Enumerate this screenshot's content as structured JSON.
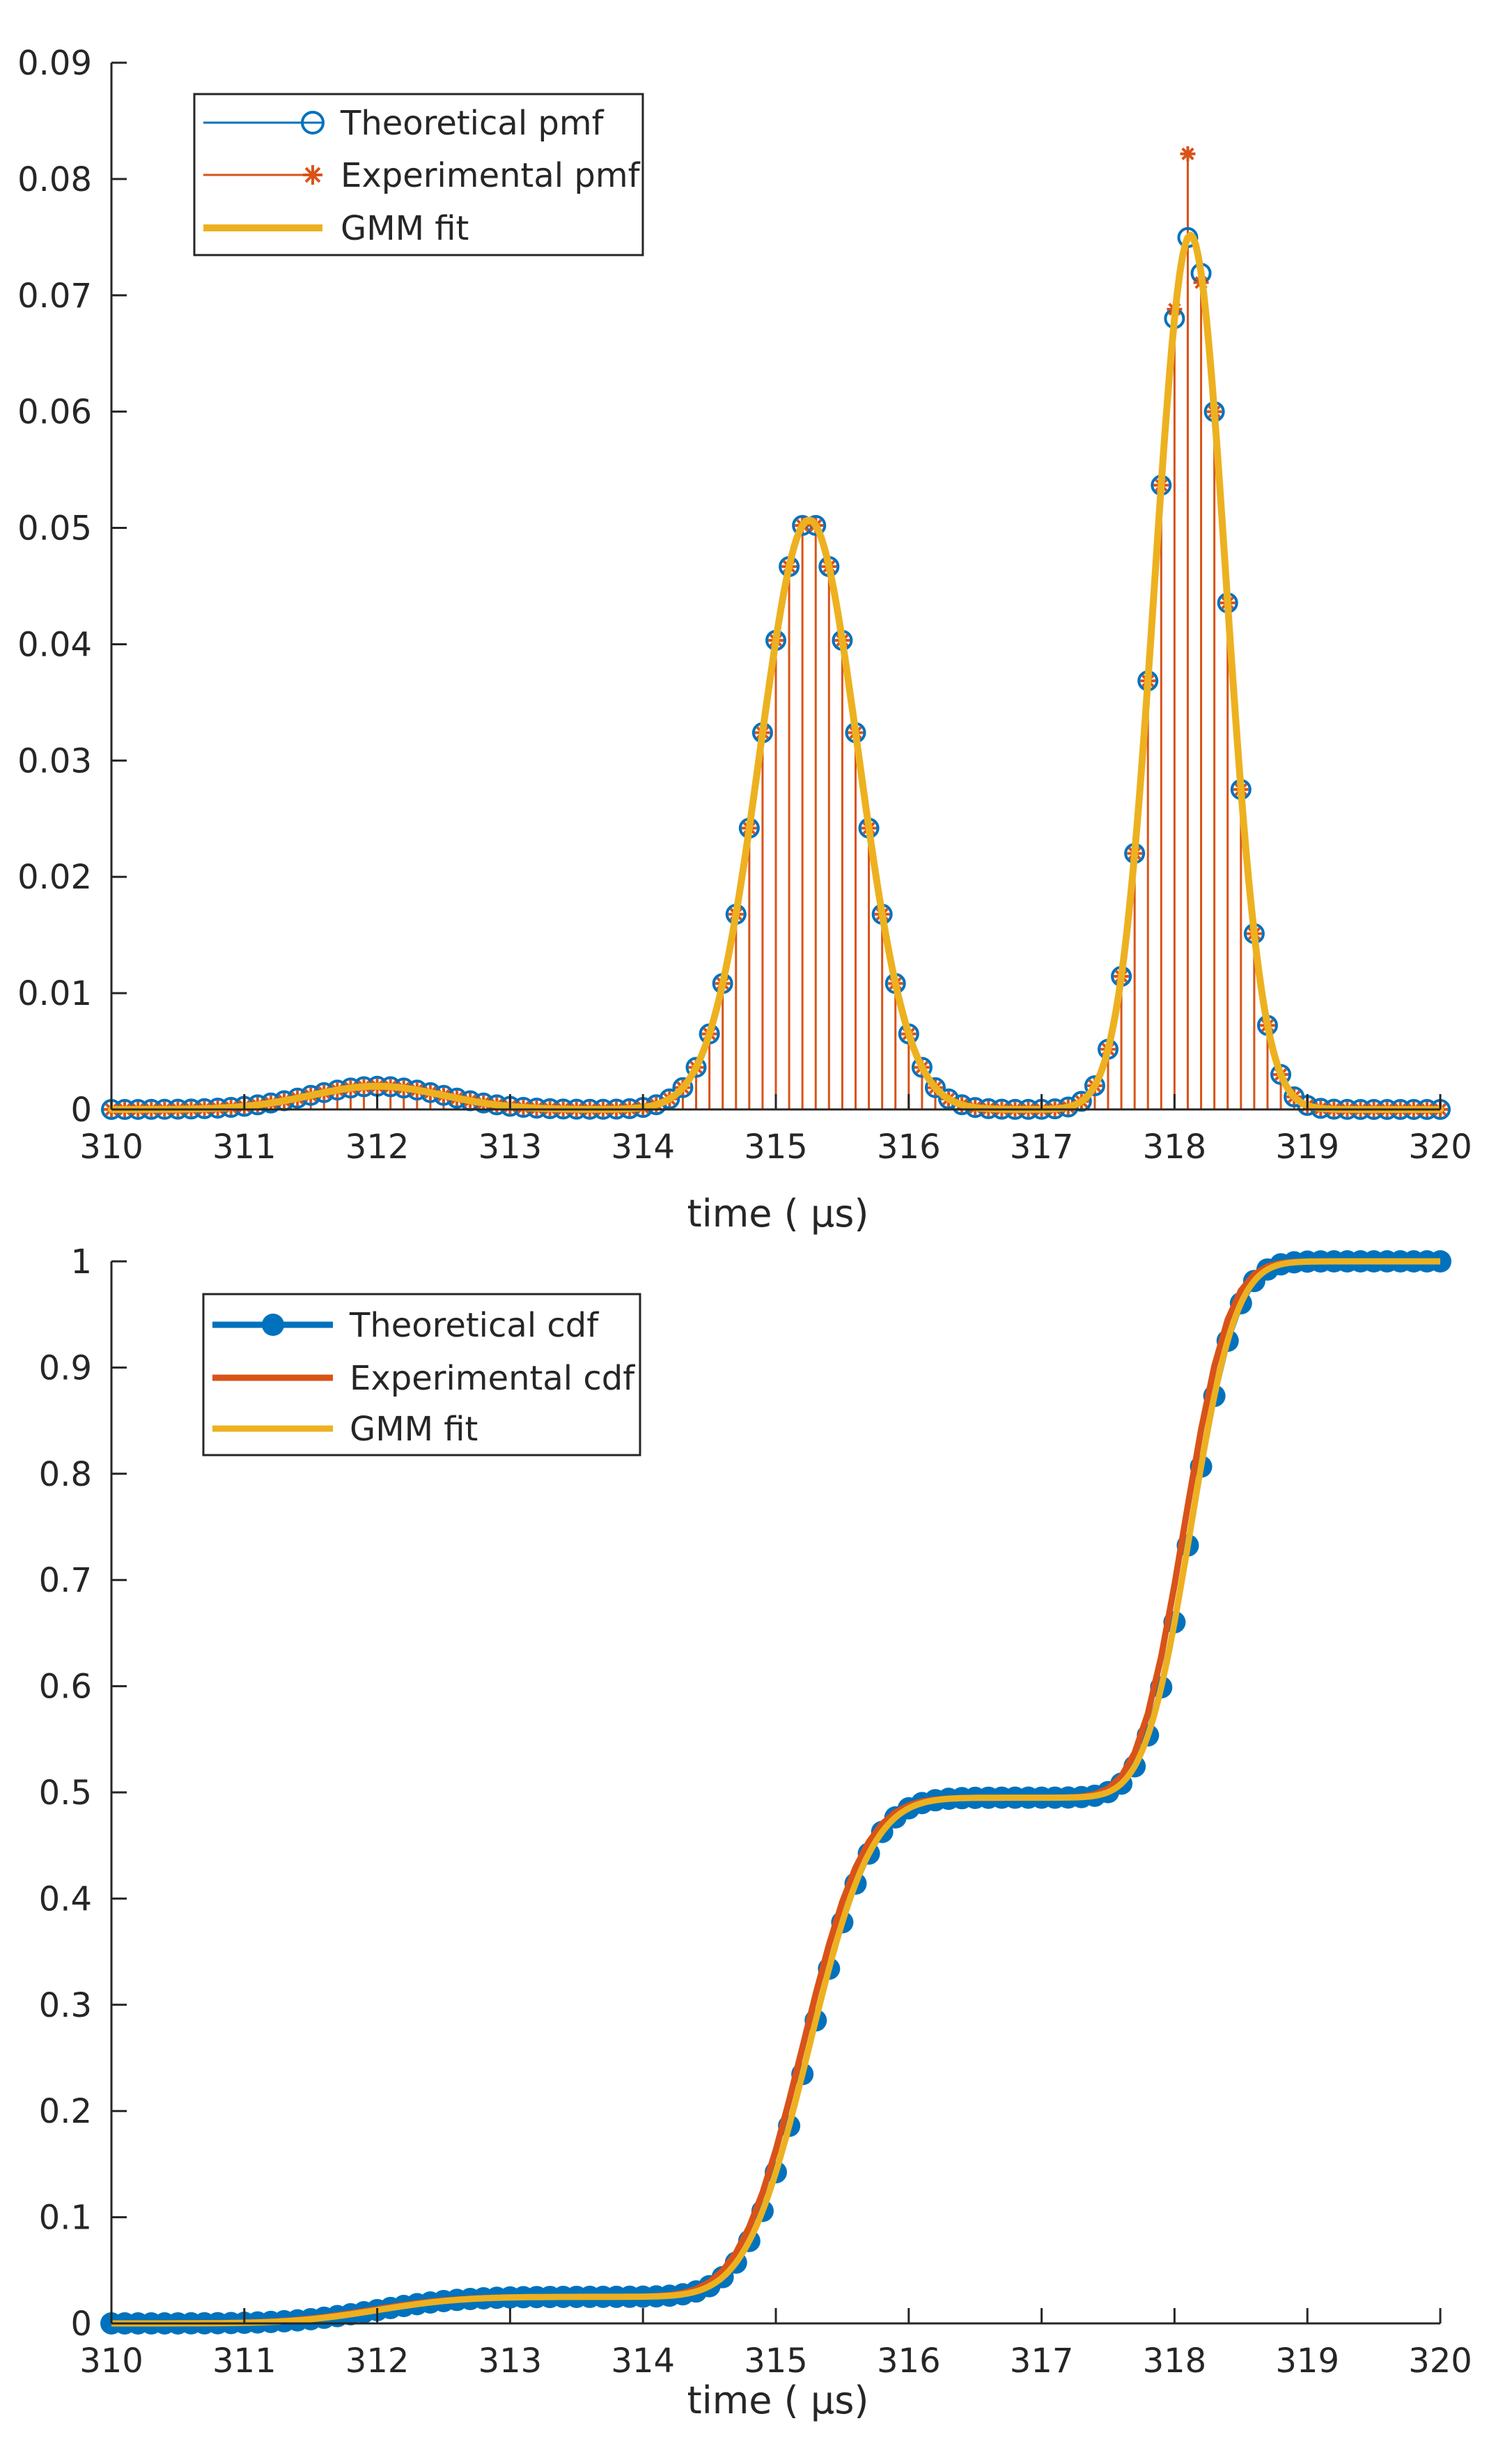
{
  "colors": {
    "theoretical": "#0072BD",
    "experimental": "#D95319",
    "gmm": "#EDB120",
    "axis": "#262626",
    "legend_border": "#262626"
  },
  "chart_data": [
    {
      "id": "pmf",
      "type": "stem",
      "xlabel": "time ( μs)",
      "xlim": [
        310,
        320
      ],
      "ylim": [
        0,
        0.09
      ],
      "xticks": [
        310,
        311,
        312,
        313,
        314,
        315,
        316,
        317,
        318,
        319,
        320
      ],
      "yticks": [
        "0",
        "0.01",
        "0.02",
        "0.03",
        "0.04",
        "0.05",
        "0.06",
        "0.07",
        "0.08",
        "0.09"
      ],
      "legend": [
        "Theoretical pmf",
        "Experimental pmf",
        "GMM fit"
      ],
      "legend_position": "top-left",
      "sample_step": 0.1,
      "components": [
        {
          "weight": 0.025,
          "mean": 312.0,
          "sigma": 0.5
        },
        {
          "weight": 0.47,
          "mean": 315.25,
          "sigma": 0.37
        },
        {
          "weight": 0.505,
          "mean": 318.12,
          "sigma": 0.268
        }
      ],
      "experimental_offsets": {
        "318.1": 0.0072,
        "318.0": 0.0008,
        "318.2": -0.0008
      }
    },
    {
      "id": "cdf",
      "type": "line",
      "xlabel": "time ( μs)",
      "xlim": [
        310,
        320
      ],
      "ylim": [
        0,
        1
      ],
      "xticks": [
        310,
        311,
        312,
        313,
        314,
        315,
        316,
        317,
        318,
        319,
        320
      ],
      "yticks": [
        "0",
        "0.1",
        "0.2",
        "0.3",
        "0.4",
        "0.5",
        "0.6",
        "0.7",
        "0.8",
        "0.9",
        "1"
      ],
      "legend": [
        "Theoretical cdf",
        "Experimental cdf",
        "GMM fit"
      ],
      "legend_position": "top-left",
      "sample_step": 0.1,
      "components": [
        {
          "weight": 0.025,
          "mean": 312.0,
          "sigma": 0.5
        },
        {
          "weight": 0.47,
          "mean": 315.25,
          "sigma": 0.37
        },
        {
          "weight": 0.505,
          "mean": 318.12,
          "sigma": 0.268
        }
      ]
    }
  ]
}
